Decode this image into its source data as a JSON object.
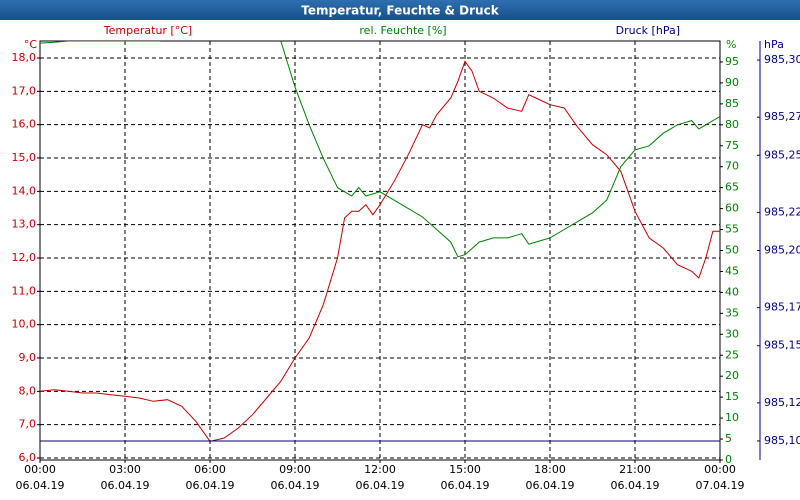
{
  "chart_data": {
    "type": "line",
    "title": "Temperatur, Feuchte & Druck",
    "ylabel": "°C",
    "y2label": "%",
    "y3label": "hPa",
    "grid": true,
    "xlim": [
      0,
      24
    ],
    "xticks": [
      {
        "value": 0,
        "label": "00:00\n06.04.19"
      },
      {
        "value": 3,
        "label": "03:00\n06.04.19"
      },
      {
        "value": 6,
        "label": "06:00\n06.04.19"
      },
      {
        "value": 9,
        "label": "09:00\n06.04.19"
      },
      {
        "value": 12,
        "label": "12:00\n06.04.19"
      },
      {
        "value": 15,
        "label": "15:00\n06.04.19"
      },
      {
        "value": 18,
        "label": "18:00\n06.04.19"
      },
      {
        "value": 21,
        "label": "21:00\n06.04.19"
      },
      {
        "value": 24,
        "label": "00:00\n07.04.19"
      }
    ],
    "ylim": [
      5.94,
      18.51
    ],
    "yticks": [
      {
        "value": 6,
        "label": "6,0"
      },
      {
        "value": 7,
        "label": "7,0"
      },
      {
        "value": 8,
        "label": "8,0"
      },
      {
        "value": 9,
        "label": "9,0"
      },
      {
        "value": 10,
        "label": "10,0"
      },
      {
        "value": 11,
        "label": "11,0"
      },
      {
        "value": 12,
        "label": "12,0"
      },
      {
        "value": 13,
        "label": "13,0"
      },
      {
        "value": 14,
        "label": "14,0"
      },
      {
        "value": 15,
        "label": "15,0"
      },
      {
        "value": 16,
        "label": "16,0"
      },
      {
        "value": 17,
        "label": "17,0"
      },
      {
        "value": 18,
        "label": "18,0"
      }
    ],
    "y2lim": [
      0,
      100
    ],
    "y2ticks": [
      0,
      5,
      10,
      15,
      20,
      25,
      30,
      35,
      40,
      45,
      50,
      55,
      60,
      65,
      70,
      75,
      80,
      85,
      90,
      95
    ],
    "y3lim": [
      985.09,
      985.31
    ],
    "y3ticks": [
      {
        "value": 985.1,
        "label": "985,10"
      },
      {
        "value": 985.12,
        "label": "985,12"
      },
      {
        "value": 985.15,
        "label": "985,15"
      },
      {
        "value": 985.17,
        "label": "985,17"
      },
      {
        "value": 985.2,
        "label": "985,20"
      },
      {
        "value": 985.22,
        "label": "985,22"
      },
      {
        "value": 985.25,
        "label": "985,25"
      },
      {
        "value": 985.27,
        "label": "985,27"
      },
      {
        "value": 985.3,
        "label": "985,30"
      }
    ],
    "series": [
      {
        "name": "Temperatur [°C]",
        "color": "#c00000",
        "axis": "y",
        "x": [
          0,
          0.5,
          1,
          1.5,
          2,
          2.5,
          3,
          3.5,
          4,
          4.5,
          5,
          5.5,
          6,
          6.5,
          7,
          7.5,
          8,
          8.5,
          9,
          9.5,
          10,
          10.5,
          10.75,
          11,
          11.25,
          11.5,
          11.75,
          12,
          12.5,
          13,
          13.5,
          13.75,
          14,
          14.5,
          14.75,
          15,
          15.25,
          15.5,
          16,
          16.5,
          17,
          17.25,
          17.5,
          18,
          18.5,
          19,
          19.5,
          20,
          20.5,
          21,
          21.5,
          22,
          22.5,
          23,
          23.25,
          23.5,
          23.75,
          24
        ],
        "values": [
          8.0,
          8.05,
          8.0,
          7.95,
          7.95,
          7.9,
          7.85,
          7.8,
          7.7,
          7.75,
          7.55,
          7.1,
          6.5,
          6.6,
          6.9,
          7.3,
          7.8,
          8.3,
          9.0,
          9.6,
          10.6,
          12.0,
          13.2,
          13.4,
          13.4,
          13.6,
          13.3,
          13.6,
          14.3,
          15.1,
          16.0,
          15.9,
          16.3,
          16.8,
          17.3,
          17.9,
          17.6,
          17.0,
          16.8,
          16.5,
          16.4,
          16.9,
          16.8,
          16.6,
          16.5,
          15.9,
          15.4,
          15.1,
          14.6,
          13.4,
          12.6,
          12.3,
          11.8,
          11.6,
          11.4,
          12.0,
          12.8,
          12.8
        ]
      },
      {
        "name": "rel. Feuchte [%]",
        "color": "#008000",
        "axis": "y2",
        "x": [
          0,
          0.5,
          1,
          2,
          3,
          4,
          4.25,
          4.5,
          8,
          8.5,
          9,
          9.5,
          10,
          10.5,
          11,
          11.25,
          11.5,
          12,
          12.5,
          13,
          13.5,
          14,
          14.5,
          14.75,
          15,
          15.5,
          16,
          16.5,
          17,
          17.25,
          17.5,
          18,
          18.5,
          19,
          19.5,
          20,
          20.5,
          21,
          21.5,
          22,
          22.5,
          23,
          23.25,
          23.5,
          24
        ],
        "values": [
          99.5,
          99.7,
          100,
          100,
          100,
          100,
          100,
          null,
          null,
          100,
          89,
          80,
          72,
          65,
          63,
          65,
          63,
          64,
          62,
          60,
          58,
          55,
          52,
          48.5,
          49,
          52,
          53,
          53,
          54,
          51.5,
          52,
          53,
          55,
          57,
          59,
          62,
          70,
          74,
          75,
          78,
          80,
          81,
          79,
          80,
          82
        ]
      },
      {
        "name": "Druck [hPa]",
        "color": "#000080",
        "axis": "y3",
        "x": [
          0,
          24
        ],
        "values": [
          985.1,
          985.1
        ]
      }
    ]
  }
}
